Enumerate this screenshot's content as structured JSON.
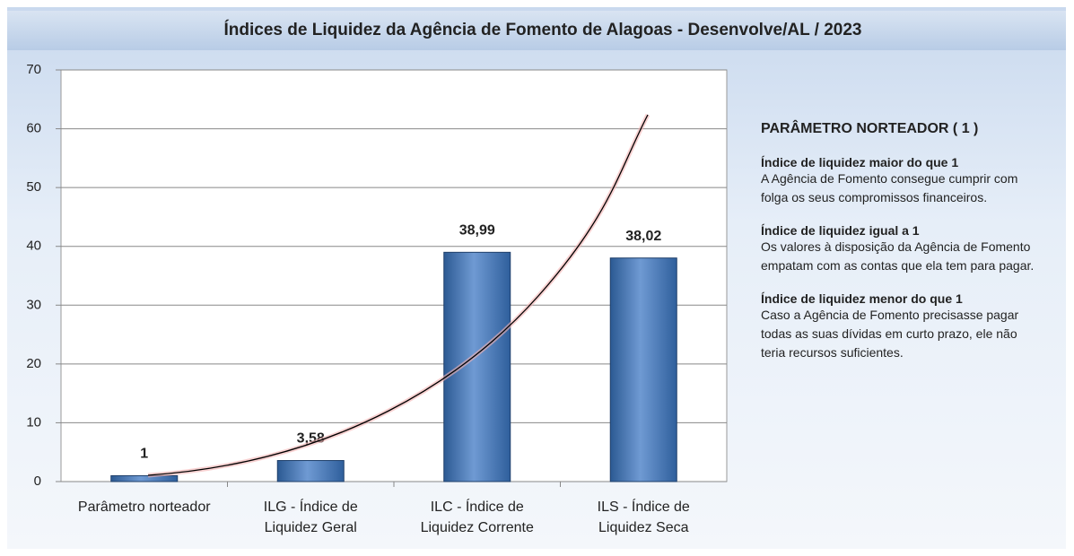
{
  "chart_data": {
    "type": "bar",
    "title": "Índices de Liquidez da Agência de Fomento de Alagoas - Desenvolve/AL / 2023",
    "categories": [
      "Parâmetro norteador",
      "ILG - Índice de Liquidez Geral",
      "ILC - Índice de Liquidez Corrente",
      "ILS - Índice de Liquidez Seca"
    ],
    "values": [
      1,
      3.58,
      38.99,
      38.02
    ],
    "value_labels": [
      "1",
      "3,58",
      "38,99",
      "38,02"
    ],
    "color": "#4f81bd",
    "ylim": [
      0,
      70
    ],
    "yticks": [
      0,
      10,
      20,
      30,
      40,
      50,
      60,
      70
    ],
    "grid": true
  },
  "side_panel": {
    "heading": "PARÂMETRO NORTEADOR ( 1 )",
    "items": [
      {
        "title": "Índice de liquidez maior do que 1",
        "text": "A Agência de Fomento consegue cumprir com folga os seus compromissos financeiros."
      },
      {
        "title": "Índice de liquidez igual a 1",
        "text": "Os valores à disposição da Agência de Fomento empatam com as contas que ela tem para pagar."
      },
      {
        "title": "Índice de liquidez menor do que 1",
        "text": "Caso a Agência de Fomento precisasse pagar todas as suas dívidas em curto prazo, ele não teria recursos suficientes."
      }
    ]
  }
}
